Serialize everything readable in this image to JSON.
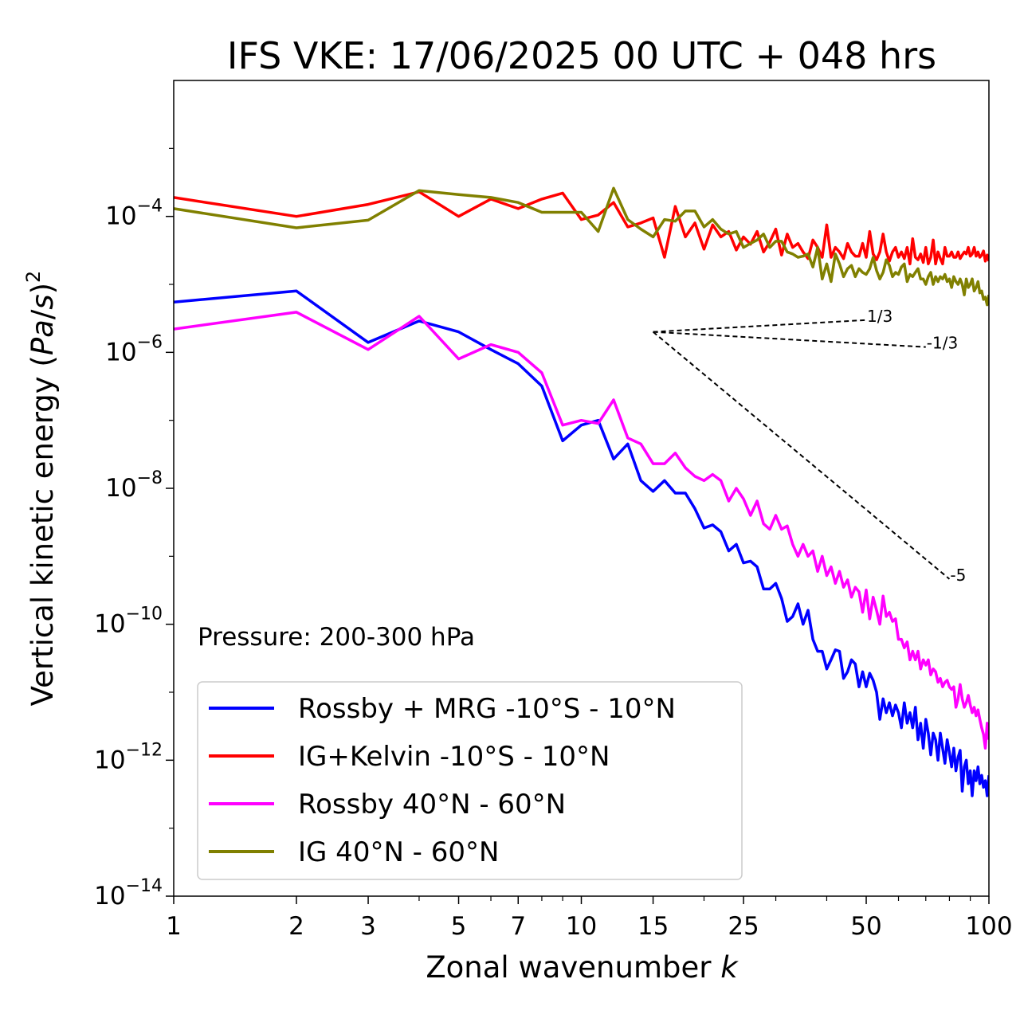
{
  "chart_data": {
    "type": "line",
    "title": "IFS VKE: 17/06/2025 00 UTC + 048 hrs",
    "xlabel": "Zonal wavenumber k",
    "ylabel": "Vertical kinetic energy (Pa/s)²",
    "x_scale": "log",
    "y_scale": "log",
    "xlim": [
      1,
      100
    ],
    "ylim": [
      1e-14,
      0.01
    ],
    "x_ticks": [
      1,
      2,
      3,
      5,
      7,
      10,
      15,
      25,
      50,
      100
    ],
    "x_tick_labels": [
      "1",
      "2",
      "3",
      "5",
      "7",
      "10",
      "15",
      "25",
      "50",
      "100"
    ],
    "y_ticks": [
      0.0001,
      1e-06,
      1e-08,
      1e-10,
      1e-12,
      1e-14
    ],
    "y_tick_labels": [
      {
        "base": "10",
        "exp": "−4"
      },
      {
        "base": "10",
        "exp": "−6"
      },
      {
        "base": "10",
        "exp": "−8"
      },
      {
        "base": "10",
        "exp": "−10"
      },
      {
        "base": "10",
        "exp": "−12"
      },
      {
        "base": "10",
        "exp": "−14"
      }
    ],
    "annotation": "Pressure: 200-300 hPa",
    "legend_position": "lower-left",
    "grid": false,
    "series": [
      {
        "name": "Rossby + MRG -10°S - 10°N",
        "color": "#0000ff",
        "x": [
          1,
          2,
          3,
          4,
          5,
          6,
          7,
          8,
          9,
          10,
          11,
          12,
          13,
          14,
          15,
          16,
          17,
          18,
          19,
          20,
          21,
          22,
          23,
          24,
          25,
          26,
          27,
          28,
          29,
          30,
          31,
          32,
          33,
          34,
          35,
          36,
          37,
          38,
          39,
          40,
          41,
          42,
          43,
          44,
          45,
          46,
          47,
          48,
          49,
          50,
          51,
          52,
          53,
          54,
          55,
          56,
          57,
          58,
          59,
          60,
          61,
          62,
          63,
          64,
          65,
          66,
          67,
          68,
          69,
          70,
          71,
          72,
          73,
          74,
          75,
          76,
          77,
          78,
          79,
          80,
          81,
          82,
          83,
          84,
          85,
          86,
          87,
          88,
          89,
          90,
          91,
          92,
          93,
          94,
          95,
          96,
          97,
          98,
          99,
          100
        ],
        "y": [
          5.5e-06,
          8e-06,
          1.4e-06,
          2.9e-06,
          2e-06,
          1.1e-06,
          6.8e-07,
          3.2e-07,
          5e-08,
          8.5e-08,
          1e-07,
          2.7e-08,
          4.5e-08,
          1.3e-08,
          9e-09,
          1.3e-08,
          8.5e-09,
          8.5e-09,
          5e-09,
          2.6e-09,
          2.9e-09,
          2.3e-09,
          1.2e-09,
          1.5e-09,
          8e-10,
          8.5e-10,
          7e-10,
          3.3e-10,
          3.3e-10,
          4e-10,
          2.4e-10,
          1.1e-10,
          1.3e-10,
          2e-10,
          1e-10,
          1.6e-10,
          6e-11,
          4e-11,
          4e-11,
          2.2e-11,
          3e-11,
          4.2e-11,
          4e-11,
          1.6e-11,
          2e-11,
          3e-11,
          2.6e-11,
          1.2e-11,
          2e-11,
          1.2e-11,
          1.9e-11,
          1.5e-11,
          1e-11,
          4e-12,
          8e-12,
          5e-12,
          7e-12,
          4.5e-12,
          6.5e-12,
          5e-12,
          3e-12,
          7e-12,
          3.5e-12,
          5e-12,
          3e-12,
          6e-12,
          2e-12,
          3.5e-12,
          1.5e-12,
          4e-12,
          2.5e-12,
          1.2e-12,
          2.5e-12,
          2e-12,
          1e-12,
          2.5e-12,
          1.5e-12,
          9e-13,
          2e-12,
          1.3e-12,
          8e-13,
          1.5e-12,
          7e-13,
          1.1e-12,
          1.4e-12,
          3.5e-13,
          8e-13,
          1e-12,
          4.5e-13,
          7e-13,
          3e-13,
          7e-13,
          5e-13,
          8e-13,
          4.5e-13,
          6e-13,
          4e-13,
          5e-13,
          3e-13,
          6e-13
        ]
      },
      {
        "name": "IG+Kelvin -10°S - 10°N",
        "color": "#ff0000",
        "x": [
          1,
          2,
          3,
          4,
          5,
          6,
          7,
          8,
          9,
          10,
          11,
          12,
          13,
          14,
          15,
          16,
          17,
          18,
          19,
          20,
          21,
          22,
          23,
          24,
          25,
          26,
          27,
          28,
          29,
          30,
          31,
          32,
          33,
          34,
          35,
          36,
          37,
          38,
          39,
          40,
          41,
          42,
          43,
          44,
          45,
          46,
          47,
          48,
          49,
          50,
          51,
          52,
          53,
          54,
          55,
          56,
          57,
          58,
          59,
          60,
          61,
          62,
          63,
          64,
          65,
          66,
          67,
          68,
          69,
          70,
          71,
          72,
          73,
          74,
          75,
          76,
          77,
          78,
          79,
          80,
          81,
          82,
          83,
          84,
          85,
          86,
          87,
          88,
          89,
          90,
          91,
          92,
          93,
          94,
          95,
          96,
          97,
          98,
          99,
          100
        ],
        "y": [
          0.00019,
          0.0001,
          0.00015,
          0.00023,
          0.0001,
          0.00018,
          0.00013,
          0.00018,
          0.00022,
          9e-05,
          0.000105,
          0.00016,
          7e-05,
          8e-05,
          9.5e-05,
          2.5e-05,
          0.00014,
          5e-05,
          8e-05,
          3.3e-05,
          7.5e-05,
          5e-05,
          6e-05,
          3.2e-05,
          5e-05,
          3.9e-05,
          6e-05,
          3e-05,
          4.2e-05,
          6.5e-05,
          2.7e-05,
          5.5e-05,
          3.5e-05,
          4e-05,
          3e-05,
          2.4e-05,
          4.5e-05,
          3.5e-05,
          2.5e-05,
          7.5e-05,
          2.5e-05,
          3.5e-05,
          3e-05,
          2.4e-05,
          4e-05,
          3e-05,
          2.6e-05,
          2.6e-05,
          4e-05,
          2.5e-05,
          6e-05,
          2.8e-05,
          2.3e-05,
          3e-05,
          5.5e-05,
          3e-05,
          2.2e-05,
          3e-05,
          3.5e-05,
          2.5e-05,
          3e-05,
          2.4e-05,
          3.5e-05,
          2e-05,
          4.7e-05,
          2.5e-05,
          2.3e-05,
          2.8e-05,
          2.1e-05,
          3.5e-05,
          2e-05,
          2.5e-05,
          4.5e-05,
          2e-05,
          3e-05,
          2.4e-05,
          2e-05,
          3.5e-05,
          2.6e-05,
          2.6e-05,
          3e-05,
          2.5e-05,
          2.5e-05,
          3e-05,
          2.4e-05,
          2.7e-05,
          3e-05,
          2.8e-05,
          3.5e-05,
          2.6e-05,
          2.8e-05,
          3.5e-05,
          2.6e-05,
          3e-05,
          2.5e-05,
          2.7e-05,
          3.1e-05,
          2.2e-05,
          2.7e-05,
          2.2e-05
        ]
      },
      {
        "name": "Rossby 40°N - 60°N",
        "color": "#ff00ff",
        "x": [
          1,
          2,
          3,
          4,
          5,
          6,
          7,
          8,
          9,
          10,
          11,
          12,
          13,
          14,
          15,
          16,
          17,
          18,
          19,
          20,
          21,
          22,
          23,
          24,
          25,
          26,
          27,
          28,
          29,
          30,
          31,
          32,
          33,
          34,
          35,
          36,
          37,
          38,
          39,
          40,
          41,
          42,
          43,
          44,
          45,
          46,
          47,
          48,
          49,
          50,
          51,
          52,
          53,
          54,
          55,
          56,
          57,
          58,
          59,
          60,
          61,
          62,
          63,
          64,
          65,
          66,
          67,
          68,
          69,
          70,
          71,
          72,
          73,
          74,
          75,
          76,
          77,
          78,
          79,
          80,
          81,
          82,
          83,
          84,
          85,
          86,
          87,
          88,
          89,
          90,
          91,
          92,
          93,
          94,
          95,
          96,
          97,
          98,
          99,
          100
        ],
        "y": [
          2.2e-06,
          3.9e-06,
          1.1e-06,
          3.4e-06,
          8e-07,
          1.3e-06,
          1e-06,
          5e-07,
          8.5e-08,
          1e-07,
          9e-08,
          2e-07,
          5.5e-08,
          4.5e-08,
          2.3e-08,
          2.3e-08,
          3.3e-08,
          2e-08,
          1.5e-08,
          1.3e-08,
          1.6e-08,
          1.3e-08,
          6.5e-09,
          1e-08,
          7e-09,
          4e-09,
          6.5e-09,
          3e-09,
          2.5e-09,
          4e-09,
          2.5e-09,
          2.8e-09,
          1.5e-09,
          1e-09,
          1.5e-09,
          1e-09,
          1.2e-09,
          6e-10,
          1e-09,
          5.2e-10,
          7e-10,
          4e-10,
          6e-10,
          3.5e-10,
          4.5e-10,
          2.5e-10,
          3.5e-10,
          3e-10,
          1.5e-10,
          3.2e-10,
          1.2e-10,
          2.5e-10,
          1.6e-10,
          1e-10,
          2.6e-10,
          1.3e-10,
          1.5e-10,
          1.1e-10,
          1.2e-10,
          6e-11,
          6e-11,
          4.5e-11,
          5.5e-11,
          3e-11,
          4e-11,
          3e-11,
          4e-11,
          2.2e-11,
          3e-11,
          2.5e-11,
          3e-11,
          1.8e-11,
          2.2e-11,
          2e-11,
          1.4e-11,
          1.6e-11,
          1.2e-11,
          1.4e-11,
          1.5e-11,
          1.2e-11,
          1.1e-11,
          1.2e-11,
          6e-12,
          8e-12,
          1.3e-11,
          8e-12,
          6e-12,
          7e-12,
          9e-12,
          6.5e-12,
          5e-12,
          6e-12,
          4.5e-12,
          5.5e-12,
          4e-12,
          3e-12,
          2.4e-12,
          1.5e-12,
          3.5e-12,
          2e-12
        ]
      },
      {
        "name": "IG 40°N - 60°N",
        "color": "#808000",
        "x": [
          1,
          2,
          3,
          4,
          5,
          6,
          7,
          8,
          9,
          10,
          11,
          12,
          13,
          14,
          15,
          16,
          17,
          18,
          19,
          20,
          21,
          22,
          23,
          24,
          25,
          26,
          27,
          28,
          29,
          30,
          31,
          32,
          33,
          34,
          35,
          36,
          37,
          38,
          39,
          40,
          41,
          42,
          43,
          44,
          45,
          46,
          47,
          48,
          49,
          50,
          51,
          52,
          53,
          54,
          55,
          56,
          57,
          58,
          59,
          60,
          61,
          62,
          63,
          64,
          65,
          66,
          67,
          68,
          69,
          70,
          71,
          72,
          73,
          74,
          75,
          76,
          77,
          78,
          79,
          80,
          81,
          82,
          83,
          84,
          85,
          86,
          87,
          88,
          89,
          90,
          91,
          92,
          93,
          94,
          95,
          96,
          97,
          98,
          99,
          100
        ],
        "y": [
          0.00013,
          6.8e-05,
          8.8e-05,
          0.00024,
          0.00021,
          0.00019,
          0.00016,
          0.000115,
          0.000115,
          0.000115,
          6e-05,
          0.00026,
          9e-05,
          6.5e-05,
          5e-05,
          9e-05,
          8.5e-05,
          0.00012,
          0.00012,
          7e-05,
          9e-05,
          6.5e-05,
          5.5e-05,
          6e-05,
          3.5e-05,
          4e-05,
          4.5e-05,
          5.5e-05,
          3.5e-05,
          4.3e-05,
          4.3e-05,
          3e-05,
          2.8e-05,
          2.5e-05,
          2.6e-05,
          2.8e-05,
          1.8e-05,
          3.5e-05,
          1.2e-05,
          2e-05,
          1.1e-05,
          2.8e-05,
          2e-05,
          1.3e-05,
          1.7e-05,
          1.9e-05,
          1.3e-05,
          1.7e-05,
          1.5e-05,
          1.4e-05,
          1.7e-05,
          2.5e-05,
          1.6e-05,
          1.2e-05,
          1.5e-05,
          2.3e-05,
          1.9e-05,
          1.3e-05,
          1.5e-05,
          1.4e-05,
          1.8e-05,
          2e-05,
          1.1e-05,
          1.4e-05,
          1.3e-05,
          1.5e-05,
          1.7e-05,
          1.2e-05,
          1.2e-05,
          1e-05,
          1.3e-05,
          1.5e-05,
          1e-05,
          1.3e-05,
          1.1e-05,
          1.3e-05,
          1.2e-05,
          1.4e-05,
          1.1e-05,
          1.2e-05,
          9e-06,
          1.3e-05,
          1.1e-05,
          1e-05,
          1.2e-05,
          1e-05,
          7e-06,
          1.2e-05,
          9e-06,
          1e-05,
          1.2e-05,
          8e-06,
          9e-06,
          1.1e-05,
          7.5e-06,
          8e-06,
          6e-06,
          6.5e-06,
          5e-06,
          7e-06
        ]
      }
    ],
    "reference_slopes": {
      "origin": {
        "x": 15,
        "y": 2e-06
      },
      "lines": [
        {
          "label": "1/3",
          "slope": 0.3333,
          "x_end": 50
        },
        {
          "label": "-1/3",
          "slope": -0.3333,
          "x_end": 70
        },
        {
          "label": "-5",
          "slope": -5,
          "x_end": 80
        }
      ]
    }
  }
}
